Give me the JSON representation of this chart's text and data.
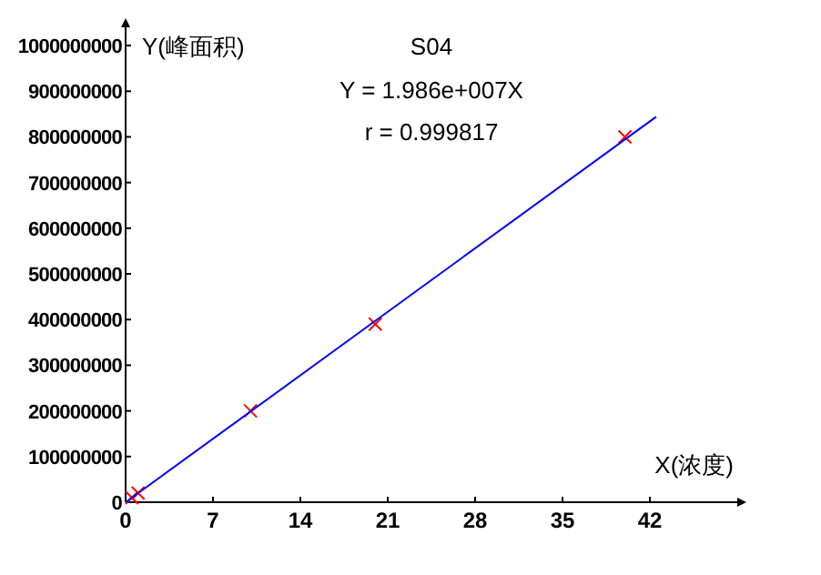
{
  "chart_data": {
    "type": "scatter",
    "title": "S04",
    "xlabel": "X(浓度)",
    "ylabel": "Y(峰面积)",
    "annotations": [
      "Y = 1.986e+007X",
      "r = 0.999817"
    ],
    "xlim": [
      0,
      49
    ],
    "xticks": [
      0,
      7,
      14,
      21,
      28,
      35,
      42
    ],
    "ylim": [
      0,
      1040000000
    ],
    "yticks": [
      0,
      100000000,
      200000000,
      300000000,
      400000000,
      500000000,
      600000000,
      700000000,
      800000000,
      900000000,
      1000000000
    ],
    "grid": false,
    "series": [
      {
        "color": "#ff0000",
        "marker": "cross",
        "x": [
          0.5,
          1,
          10,
          20,
          40
        ],
        "values": [
          10000000,
          20000000,
          200000000,
          390000000,
          800000000
        ]
      },
      {
        "type": "line",
        "color": "#0000ff",
        "line_style": "solid",
        "x": [
          0,
          42.5
        ],
        "values": [
          0,
          844000000
        ]
      }
    ]
  }
}
